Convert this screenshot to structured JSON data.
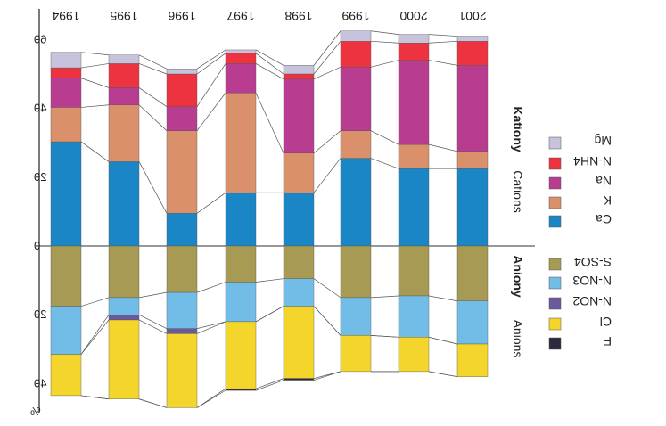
{
  "chart_data": {
    "type": "bar",
    "mirrored": true,
    "categories": [
      "1994",
      "1995",
      "1996",
      "1997",
      "1998",
      "1999",
      "2000",
      "2001"
    ],
    "ylim": [
      -47,
      63
    ],
    "y_ticks": [
      60,
      40,
      20,
      0,
      -20,
      -40
    ],
    "y_tick_labels": [
      "60",
      "40",
      "20",
      "0",
      "20",
      "40"
    ],
    "y_unit_label": "%",
    "cations_label": "Cations",
    "cations_label_cz": "Kationy",
    "anions_label": "Anions",
    "anions_label_cz": "Aniony",
    "cations": [
      {
        "name": "Ca",
        "color": "#1a86c6",
        "values": [
          30.3,
          24.5,
          9.5,
          15.5,
          15.5,
          25.5,
          22.5,
          22.5
        ]
      },
      {
        "name": "K",
        "color": "#d9906b",
        "values": [
          10.0,
          16.5,
          24.0,
          29.0,
          11.5,
          8.0,
          7.0,
          5.0
        ]
      },
      {
        "name": "Na",
        "color": "#b83d91",
        "values": [
          8.5,
          5.0,
          7.0,
          8.5,
          21.5,
          18.5,
          24.5,
          25.0
        ]
      },
      {
        "name": "N-NH4",
        "color": "#ee3340",
        "values": [
          3.0,
          7.0,
          9.5,
          3.0,
          1.5,
          7.5,
          5.0,
          7.0
        ]
      },
      {
        "name": "Mg",
        "color": "#c8c3dc",
        "values": [
          4.5,
          2.5,
          1.5,
          1.0,
          2.5,
          3.0,
          2.5,
          1.5
        ]
      }
    ],
    "anions": [
      {
        "name": "S-SO4",
        "color": "#a69a55",
        "values": [
          17.5,
          15.0,
          13.5,
          10.5,
          9.5,
          15.0,
          14.5,
          16.0
        ]
      },
      {
        "name": "N-NO3",
        "color": "#72bde7",
        "values": [
          14.0,
          5.0,
          10.5,
          11.5,
          8.0,
          11.0,
          12.0,
          12.5
        ]
      },
      {
        "name": "N-NO2",
        "color": "#6a5a9c",
        "values": [
          0.0,
          1.5,
          1.5,
          0.0,
          0.0,
          0.0,
          0.0,
          0.0
        ]
      },
      {
        "name": "Cl",
        "color": "#f4d52b",
        "values": [
          12.0,
          23.0,
          21.5,
          19.5,
          21.0,
          10.5,
          10.0,
          9.5
        ]
      },
      {
        "name": "F",
        "color": "#2d2a3e",
        "values": [
          0.0,
          0.0,
          0.0,
          0.5,
          0.5,
          0.0,
          0.0,
          0.0
        ]
      }
    ],
    "legend_cations": [
      "Mg",
      "N-NH4",
      "Na",
      "K",
      "Ca"
    ],
    "legend_anions": [
      "S-SO4",
      "N-NO3",
      "N-NO2",
      "Cl",
      "F"
    ]
  }
}
